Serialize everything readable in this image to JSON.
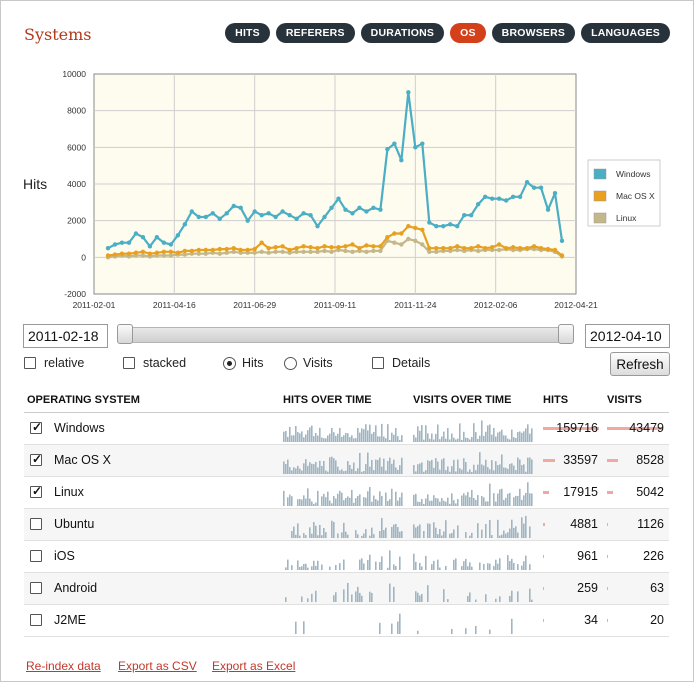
{
  "page": {
    "title": "Systems"
  },
  "tabs": [
    {
      "label": "HITS",
      "active": false
    },
    {
      "label": "REFERERS",
      "active": false
    },
    {
      "label": "DURATIONS",
      "active": false
    },
    {
      "label": "OS",
      "active": true
    },
    {
      "label": "BROWSERS",
      "active": false
    },
    {
      "label": "LANGUAGES",
      "active": false
    }
  ],
  "chart_data": {
    "type": "line",
    "ylabel": "Hits",
    "ylim": [
      -2000,
      10000
    ],
    "yticks": [
      -2000,
      0,
      2000,
      4000,
      6000,
      8000,
      10000
    ],
    "xticks": [
      "2011-02-01",
      "2011-04-16",
      "2011-06-29",
      "2011-09-11",
      "2011-11-24",
      "2012-02-06",
      "2012-04-21"
    ],
    "legend_position": "right",
    "series": [
      {
        "name": "Windows",
        "color": "#4aaec4",
        "values": [
          500,
          700,
          800,
          800,
          1300,
          1100,
          600,
          1100,
          800,
          700,
          1200,
          1800,
          2500,
          2200,
          2200,
          2400,
          2100,
          2400,
          2800,
          2700,
          2000,
          2500,
          2300,
          2400,
          2200,
          2500,
          2300,
          2100,
          2400,
          2300,
          1700,
          2200,
          2700,
          3200,
          2600,
          2400,
          2700,
          2500,
          2700,
          2600,
          5900,
          6200,
          5300,
          9000,
          6000,
          6200,
          1900,
          1700,
          1700,
          1800,
          1700,
          2300,
          2300,
          2900,
          3300,
          3200,
          3200,
          3100,
          3300,
          3300,
          4100,
          3800,
          3800,
          2600,
          3500,
          900
        ]
      },
      {
        "name": "Mac OS X",
        "color": "#e8a020",
        "values": [
          100,
          150,
          200,
          200,
          250,
          300,
          200,
          250,
          300,
          300,
          250,
          350,
          350,
          400,
          400,
          400,
          450,
          450,
          500,
          400,
          400,
          450,
          800,
          500,
          550,
          600,
          400,
          500,
          600,
          550,
          500,
          600,
          550,
          550,
          600,
          700,
          500,
          650,
          600,
          600,
          1100,
          1300,
          1300,
          1700,
          1600,
          1500,
          500,
          500,
          500,
          500,
          600,
          500,
          500,
          600,
          500,
          550,
          700,
          500,
          550,
          500,
          500,
          600,
          500,
          450,
          400,
          100
        ]
      },
      {
        "name": "Linux",
        "color": "#c4b88a",
        "values": [
          0,
          50,
          100,
          50,
          100,
          100,
          50,
          100,
          100,
          100,
          150,
          150,
          200,
          200,
          200,
          250,
          200,
          250,
          300,
          250,
          250,
          250,
          300,
          250,
          300,
          300,
          250,
          300,
          300,
          300,
          300,
          350,
          300,
          400,
          350,
          300,
          350,
          300,
          350,
          350,
          900,
          800,
          700,
          1000,
          900,
          700,
          300,
          300,
          350,
          350,
          400,
          350,
          400,
          350,
          400,
          400,
          400,
          450,
          400,
          400,
          450,
          450,
          400,
          400,
          300,
          50
        ]
      }
    ]
  },
  "range": {
    "start": "2011-02-18",
    "end": "2012-04-10"
  },
  "options": {
    "relative": {
      "label": "relative",
      "checked": false
    },
    "stacked": {
      "label": "stacked",
      "checked": false
    },
    "hits": {
      "label": "Hits",
      "selected": true
    },
    "visits": {
      "label": "Visits",
      "selected": false
    },
    "details": {
      "label": "Details",
      "checked": false
    },
    "refresh_label": "Refresh"
  },
  "table": {
    "headers": {
      "os": "OPERATING SYSTEM",
      "hits_over_time": "HITS OVER TIME",
      "visits_over_time": "VISITS OVER TIME",
      "hits": "HITS",
      "visits": "VISITS"
    },
    "spark_color": "#9fb6c2",
    "bar_color": "#f0a9a0",
    "rows": [
      {
        "name": "Windows",
        "checked": true,
        "hits": "159716",
        "visits": "43479",
        "hits_share": 1.0,
        "visits_share": 1.0
      },
      {
        "name": "Mac OS X",
        "checked": true,
        "hits": "33597",
        "visits": "8528",
        "hits_share": 0.21,
        "visits_share": 0.196
      },
      {
        "name": "Linux",
        "checked": true,
        "hits": "17915",
        "visits": "5042",
        "hits_share": 0.112,
        "visits_share": 0.116
      },
      {
        "name": "Ubuntu",
        "checked": false,
        "hits": "4881",
        "visits": "1126",
        "hits_share": 0.031,
        "visits_share": 0.026
      },
      {
        "name": "iOS",
        "checked": false,
        "hits": "961",
        "visits": "226",
        "hits_share": 0.006,
        "visits_share": 0.005
      },
      {
        "name": "Android",
        "checked": false,
        "hits": "259",
        "visits": "63",
        "hits_share": 0.002,
        "visits_share": 0.0015
      },
      {
        "name": "J2ME",
        "checked": false,
        "hits": "34",
        "visits": "20",
        "hits_share": 0.0002,
        "visits_share": 0.0005
      }
    ]
  },
  "footer": {
    "reindex": "Re-index data",
    "export_csv": "Export as CSV",
    "export_excel": "Export as Excel"
  }
}
